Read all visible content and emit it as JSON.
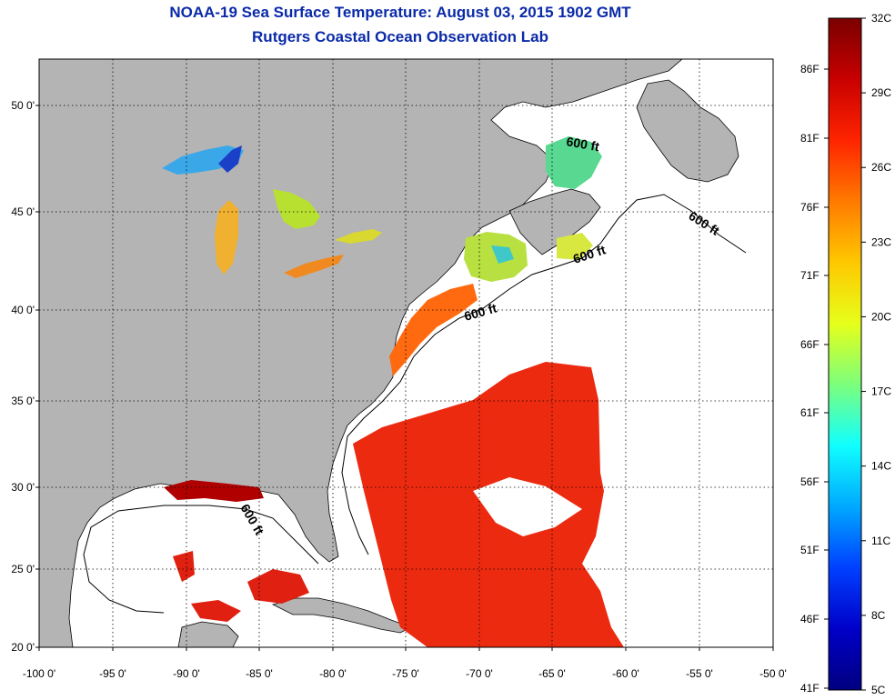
{
  "title": "NOAA-19 Sea Surface Temperature:  August 03, 2015 1902 GMT",
  "subtitle": "Rutgers Coastal Ocean Observation Lab",
  "map": {
    "lon_labels": [
      "-100 0'",
      "-95 0'",
      "-90 0'",
      "-85 0'",
      "-80 0'",
      "-75 0'",
      "-70 0'",
      "-65 0'",
      "-60 0'",
      "-55 0'",
      "-50 0'"
    ],
    "lat_labels": [
      "50 0'",
      "45 0'",
      "40 0'",
      "35 0'",
      "30 0'",
      "25 0'",
      "20 0'"
    ],
    "isobath_labels": [
      "600 ft",
      "600 ft",
      "600 ft",
      "600 ft",
      "600 ft"
    ],
    "colors": {
      "land": "#b4b4b4",
      "ocean_nodata": "#ffffff",
      "grid": "#000000"
    }
  },
  "colorbar": {
    "celsius_labels": [
      "32C",
      "29C",
      "26C",
      "23C",
      "20C",
      "17C",
      "14C",
      "11C",
      "8C",
      "5C"
    ],
    "fahrenheit_labels": [
      "86F",
      "81F",
      "76F",
      "71F",
      "66F",
      "61F",
      "56F",
      "51F",
      "46F",
      "41F"
    ],
    "stops": [
      "#7a0000",
      "#c80000",
      "#ff2400",
      "#ff7a00",
      "#ffc800",
      "#e6ff1a",
      "#7cff7c",
      "#10ffff",
      "#00a8ff",
      "#0040ff",
      "#0000c8",
      "#000080"
    ]
  }
}
